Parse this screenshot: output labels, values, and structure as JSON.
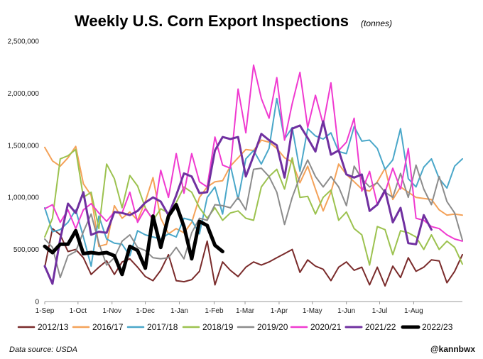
{
  "chart_data": {
    "type": "line",
    "title": "Weekly U.S. Corn Export Inspections",
    "subtitle": "(tonnes)",
    "xlabel": "",
    "ylabel": "",
    "ylim": [
      0,
      2500000
    ],
    "y_ticks": [
      0,
      500000,
      1000000,
      1500000,
      2000000,
      2500000
    ],
    "y_tick_labels": [
      "0",
      "500,000",
      "1,000,000",
      "1,500,000",
      "2,000,000",
      "2,500,000"
    ],
    "x_tick_labels": [
      "1-Sep",
      "1-Oct",
      "1-Nov",
      "1-Dec",
      "1-Jan",
      "1-Feb",
      "1-Mar",
      "1-Apr",
      "1-May",
      "1-Jun",
      "1-Jul",
      "1-Aug"
    ],
    "x_tick_weeks": [
      0,
      4.3,
      8.7,
      13,
      17.4,
      21.9,
      25.9,
      30.3,
      34.6,
      39,
      43.3,
      47.7
    ],
    "legend_position": "bottom",
    "series": [
      {
        "name": "2012/13",
        "color": "#7a2b2b",
        "width": 2,
        "values": [
          330,
          700,
          640,
          480,
          500,
          420,
          260,
          330,
          390,
          260,
          380,
          410,
          330,
          240,
          200,
          300,
          450,
          200,
          190,
          210,
          290,
          580,
          160,
          380,
          300,
          240,
          330,
          380,
          350,
          380,
          420,
          460,
          500,
          280,
          400,
          340,
          310,
          200,
          330,
          380,
          300,
          330,
          160,
          330,
          150,
          340,
          230,
          420,
          290,
          330,
          400,
          390,
          180,
          290,
          450
        ]
      },
      {
        "name": "2016/17",
        "color": "#f4a259",
        "width": 2,
        "values": [
          1480,
          1350,
          1300,
          1380,
          1490,
          1130,
          1020,
          530,
          550,
          920,
          800,
          860,
          780,
          960,
          1190,
          800,
          650,
          700,
          660,
          760,
          1000,
          1100,
          1150,
          1160,
          1300,
          1380,
          1460,
          1450,
          1550,
          1530,
          1470,
          1380,
          1340,
          1140,
          1300,
          1080,
          870,
          1050,
          1320,
          1220,
          1150,
          1080,
          1060,
          1150,
          1280,
          980,
          1100,
          1050,
          1000,
          990,
          980,
          880,
          830,
          840,
          830
        ]
      },
      {
        "name": "2017/18",
        "color": "#4aa7c9",
        "width": 2,
        "values": [
          900,
          670,
          690,
          760,
          880,
          620,
          340,
          820,
          600,
          560,
          550,
          440,
          680,
          640,
          620,
          600,
          650,
          620,
          800,
          780,
          650,
          1000,
          1100,
          840,
          1310,
          980,
          1370,
          1450,
          1320,
          1470,
          1950,
          1560,
          1670,
          1250,
          1660,
          1590,
          1560,
          1620,
          1440,
          1420,
          1680,
          1540,
          1550,
          1470,
          1270,
          1360,
          1660,
          1180,
          1100,
          1290,
          1370,
          1180,
          1090,
          1300,
          1370
        ]
      },
      {
        "name": "2018/19",
        "color": "#9cc24f",
        "width": 2,
        "values": [
          620,
          800,
          1370,
          1400,
          1460,
          1000,
          1050,
          700,
          1320,
          1180,
          900,
          1210,
          1110,
          900,
          780,
          890,
          850,
          950,
          1100,
          1050,
          900,
          800,
          900,
          780,
          850,
          870,
          800,
          780,
          1100,
          1200,
          1270,
          1080,
          1380,
          1000,
          1010,
          840,
          1000,
          1070,
          780,
          860,
          700,
          640,
          350,
          720,
          690,
          450,
          680,
          660,
          620,
          500,
          640,
          500,
          580,
          520,
          360
        ]
      },
      {
        "name": "2019/20",
        "color": "#8c8c8c",
        "width": 2,
        "values": [
          600,
          520,
          230,
          440,
          480,
          670,
          840,
          560,
          350,
          420,
          580,
          640,
          520,
          490,
          420,
          410,
          420,
          520,
          410,
          660,
          800,
          780,
          930,
          920,
          900,
          1000,
          880,
          1270,
          1280,
          1200,
          1050,
          740,
          1000,
          1200,
          1360,
          1200,
          1100,
          1200,
          1100,
          920,
          1300,
          1180,
          1100,
          1140,
          1050,
          1000,
          1230,
          1000,
          1310,
          1080,
          930,
          1200,
          960,
          850,
          590
        ]
      },
      {
        "name": "2020/21",
        "color": "#f03ad0",
        "width": 2,
        "values": [
          890,
          930,
          760,
          880,
          700,
          880,
          940,
          850,
          770,
          860,
          850,
          1050,
          760,
          890,
          790,
          1260,
          1000,
          1420,
          1040,
          1420,
          1150,
          1100,
          1580,
          1310,
          1280,
          2040,
          1620,
          2270,
          1950,
          1760,
          2150,
          1550,
          1900,
          2200,
          1670,
          1980,
          1700,
          2100,
          1450,
          1530,
          1760,
          1060,
          1250,
          930,
          1050,
          1280,
          1080,
          1470,
          800,
          780,
          720,
          700,
          640,
          600,
          580
        ]
      },
      {
        "name": "2021/22",
        "color": "#7030a0",
        "width": 3,
        "values": [
          340,
          170,
          600,
          940,
          850,
          1050,
          640,
          670,
          660,
          860,
          850,
          830,
          870,
          950,
          1000,
          960,
          830,
          1020,
          1230,
          1200,
          1040,
          1050,
          1450,
          1580,
          1560,
          1580,
          1200,
          1400,
          1610,
          1550,
          1500,
          1190,
          1660,
          1690,
          1570,
          1440,
          1730,
          1410,
          1450,
          1220,
          1190,
          1220,
          870,
          930,
          1070,
          760,
          900,
          560,
          550,
          830,
          690
        ]
      },
      {
        "name": "2022/23",
        "color": "#000000",
        "width": 5,
        "values": [
          530,
          470,
          550,
          550,
          680,
          460,
          470,
          460,
          470,
          440,
          260,
          530,
          490,
          320,
          820,
          520,
          820,
          930,
          720,
          410,
          770,
          730,
          540,
          480
        ]
      }
    ],
    "value_unit_note": "values in thousands of tonnes"
  },
  "footer": {
    "source": "Data source: USDA",
    "handle": "@kannbwx"
  }
}
